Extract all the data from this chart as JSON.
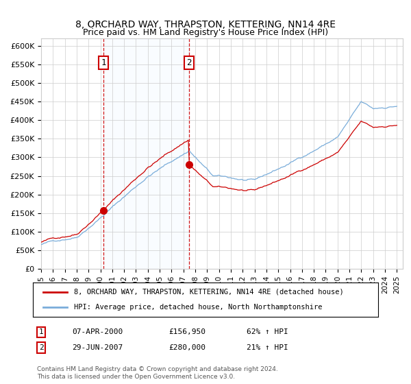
{
  "title": "8, ORCHARD WAY, THRAPSTON, KETTERING, NN14 4RE",
  "subtitle": "Price paid vs. HM Land Registry's House Price Index (HPI)",
  "ylim": [
    0,
    620000
  ],
  "yticks": [
    0,
    50000,
    100000,
    150000,
    200000,
    250000,
    300000,
    350000,
    400000,
    450000,
    500000,
    550000,
    600000
  ],
  "ytick_labels": [
    "£0",
    "£50K",
    "£100K",
    "£150K",
    "£200K",
    "£250K",
    "£300K",
    "£350K",
    "£400K",
    "£450K",
    "£500K",
    "£550K",
    "£600K"
  ],
  "sale1_year": 2000.27,
  "sale1_price": 156950,
  "sale2_year": 2007.49,
  "sale2_price": 280000,
  "line1_color": "#cc0000",
  "line2_color": "#7aadda",
  "shade_color": "#ddeeff",
  "vline_color": "#cc0000",
  "grid_color": "#cccccc",
  "bg_color": "#ffffff",
  "legend1_label": "8, ORCHARD WAY, THRAPSTON, KETTERING, NN14 4RE (detached house)",
  "legend2_label": "HPI: Average price, detached house, North Northamptonshire",
  "sale1_info": "07-APR-2000",
  "sale1_price_str": "£156,950",
  "sale1_hpi_str": "62% ↑ HPI",
  "sale2_info": "29-JUN-2007",
  "sale2_price_str": "£280,000",
  "sale2_hpi_str": "21% ↑ HPI",
  "footnote1": "Contains HM Land Registry data © Crown copyright and database right 2024.",
  "footnote2": "This data is licensed under the Open Government Licence v3.0."
}
